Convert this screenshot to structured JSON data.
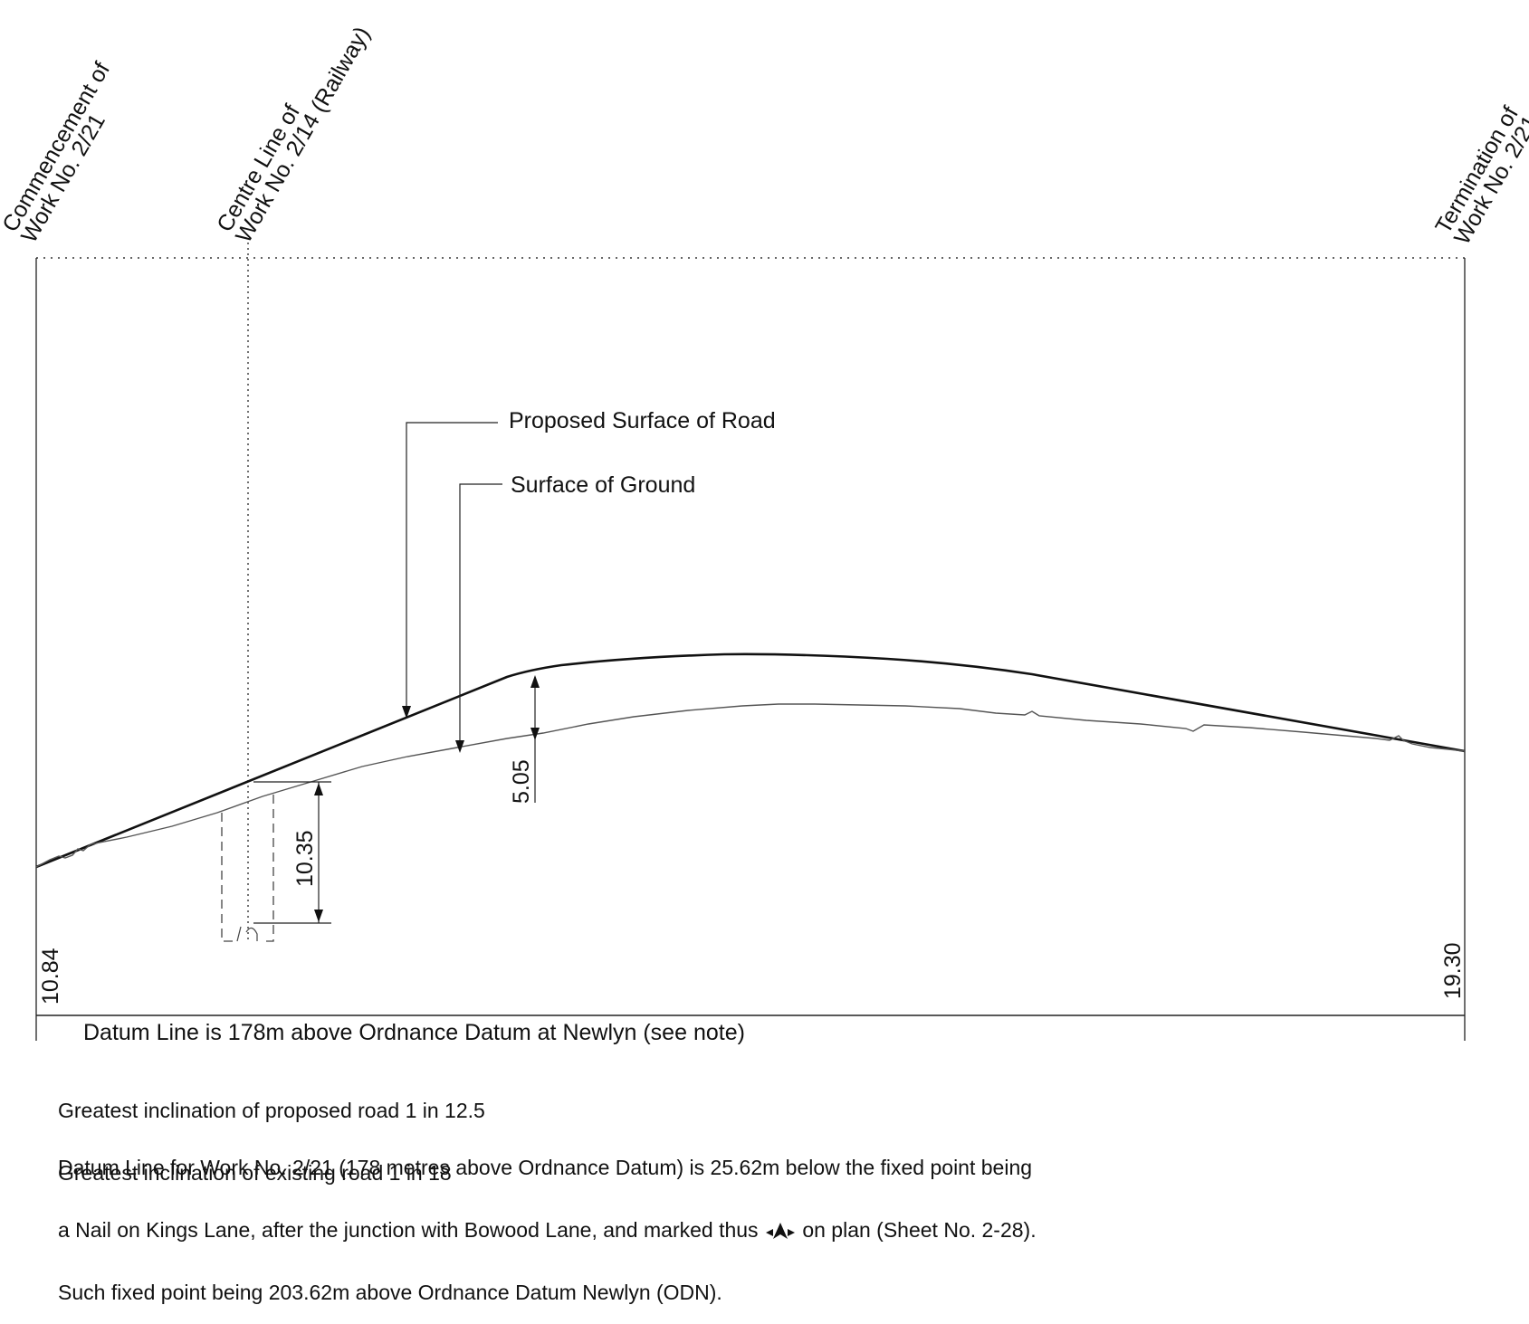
{
  "header_labels": {
    "commencement": [
      "Commencement of",
      "Work No. 2/21"
    ],
    "centre_line": [
      "Centre Line of",
      "Work No. 2/14 (Railway)"
    ],
    "termination": [
      "Termination of",
      "Work No. 2/21"
    ]
  },
  "leaders": {
    "proposed_road": "Proposed Surface of Road",
    "ground": "Surface of Ground"
  },
  "dimensions": {
    "clearance_road": "5.05",
    "clearance_railway": "10.35",
    "level_start": "10.84",
    "level_end": "19.30"
  },
  "datum_caption": "Datum Line is 178m above Ordnance Datum at Newlyn (see note)",
  "notes": {
    "inclination_proposed": "Greatest inclination of proposed road 1 in 12.5",
    "inclination_existing": "Greatest inclination of existing road 1 in 18",
    "datum_line1": "Datum Line for Work No. 2/21 (178 metres above Ordnance Datum) is 25.62m below the fixed point being",
    "datum_line2a": "a Nail on Kings Lane, after the junction with Bowood Lane, and marked thus",
    "datum_line2b": "on plan (Sheet No. 2-28).",
    "datum_line3": "Such fixed point being 203.62m above Ordnance Datum Newlyn (ODN)."
  },
  "icons": {
    "fixed_point_mark": "benchmark-arrow-icon"
  }
}
